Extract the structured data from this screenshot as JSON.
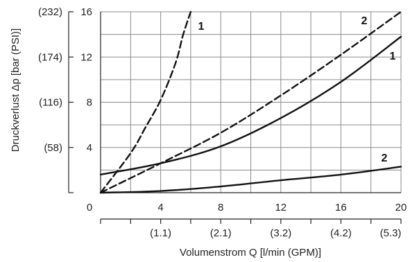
{
  "chart_data": {
    "type": "line",
    "xlabel": "Volumenstrom Q [l/min (GPM)]",
    "ylabel": "Druckverlust Δp [bar (PSI)]",
    "xlim": [
      0,
      20
    ],
    "ylim": [
      0,
      16
    ],
    "grid": true,
    "x_ticks": [
      "0",
      "4",
      "8",
      "12",
      "16",
      "20"
    ],
    "x_ticks_secondary": [
      "(1.1)",
      "(2.1)",
      "(3.2)",
      "(4.2)",
      "(5.3)"
    ],
    "y_ticks": [
      "4",
      "8",
      "12",
      "16"
    ],
    "y_ticks_secondary": [
      "(58)",
      "(116)",
      "(174)",
      "(232)"
    ],
    "series": [
      {
        "name": "1",
        "style": "dashed",
        "x": [
          0,
          2,
          3,
          4,
          5,
          5.5,
          6
        ],
        "y": [
          0,
          3.5,
          5.8,
          8.2,
          11.5,
          14,
          16
        ]
      },
      {
        "name": "2",
        "style": "dashed",
        "x": [
          0,
          4,
          8,
          12,
          16,
          20
        ],
        "y": [
          0,
          2.6,
          5.3,
          8.6,
          12.2,
          16
        ]
      },
      {
        "name": "1",
        "style": "solid",
        "x": [
          0,
          4,
          8,
          12,
          16,
          20
        ],
        "y": [
          1.6,
          2.6,
          4.1,
          6.6,
          9.8,
          13.8
        ]
      },
      {
        "name": "2",
        "style": "solid",
        "x": [
          0,
          4,
          8,
          12,
          16,
          20
        ],
        "y": [
          0,
          0.15,
          0.55,
          1.1,
          1.6,
          2.3
        ]
      }
    ]
  }
}
